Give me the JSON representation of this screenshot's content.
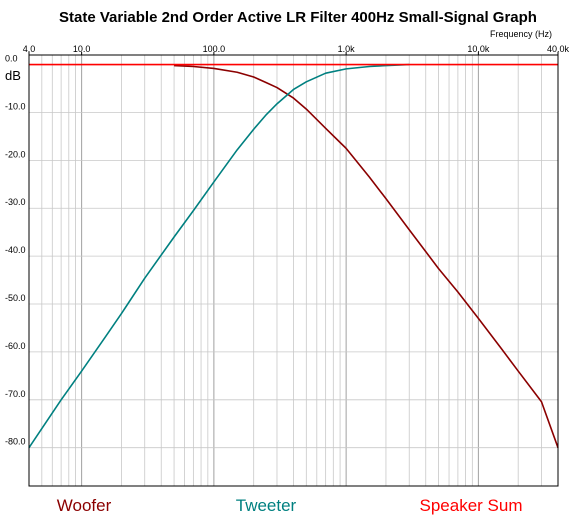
{
  "chart_data": {
    "type": "line",
    "title": "State Variable 2nd Order Active LR Filter 400Hz Small-Signal Graph",
    "xlabel": "Frequency  (Hz)",
    "ylabel": "dB",
    "xscale": "log",
    "xlim": [
      4.0,
      40000
    ],
    "ylim": [
      -88,
      2
    ],
    "x_tick_labels": [
      {
        "value": 4,
        "label": "4.0"
      },
      {
        "value": 10,
        "label": "10.0"
      },
      {
        "value": 100,
        "label": "100.0"
      },
      {
        "value": 1000,
        "label": "1.0k"
      },
      {
        "value": 10000,
        "label": "10.0k"
      },
      {
        "value": 40000,
        "label": "40.0k"
      }
    ],
    "y_tick_labels": [
      {
        "value": 0,
        "label": "0.0"
      },
      {
        "value": -10,
        "label": "-10.0"
      },
      {
        "value": -20,
        "label": "-20.0"
      },
      {
        "value": -30,
        "label": "-30.0"
      },
      {
        "value": -40,
        "label": "-40.0"
      },
      {
        "value": -50,
        "label": "-50.0"
      },
      {
        "value": -60,
        "label": "-60.0"
      },
      {
        "value": -70,
        "label": "-70.0"
      },
      {
        "value": -80,
        "label": "-80.0"
      }
    ],
    "grid": true,
    "legend_position": "bottom",
    "series": [
      {
        "name": "Woofer",
        "color": "#8b0000",
        "x": [
          50,
          70,
          100,
          150,
          200,
          250,
          300,
          400,
          500,
          700,
          1000,
          1500,
          2000,
          3000,
          5000,
          7000,
          10000,
          15000,
          20000,
          30000,
          40000
        ],
        "y": [
          -0.2,
          -0.4,
          -0.8,
          -1.6,
          -2.6,
          -3.8,
          -4.8,
          -7.0,
          -9.3,
          -13.3,
          -17.5,
          -23.5,
          -28.0,
          -34.5,
          -42.6,
          -47.5,
          -53.0,
          -59.4,
          -64.0,
          -70.4,
          -80.0
        ]
      },
      {
        "name": "Tweeter",
        "color": "#008080",
        "x": [
          4,
          5,
          7,
          10,
          15,
          20,
          30,
          50,
          70,
          100,
          150,
          200,
          250,
          300,
          400,
          500,
          700,
          1000,
          1500,
          2000,
          3000
        ],
        "y": [
          -80.0,
          -76.0,
          -70.0,
          -64.0,
          -57.0,
          -52.0,
          -44.6,
          -36.0,
          -30.5,
          -24.5,
          -17.8,
          -13.5,
          -10.4,
          -8.2,
          -5.2,
          -3.6,
          -1.8,
          -0.9,
          -0.4,
          -0.2,
          0.0
        ]
      },
      {
        "name": "Speaker Sum",
        "color": "#ff0000",
        "x": [
          4,
          40000
        ],
        "y": [
          0.0,
          0.0
        ]
      }
    ]
  }
}
